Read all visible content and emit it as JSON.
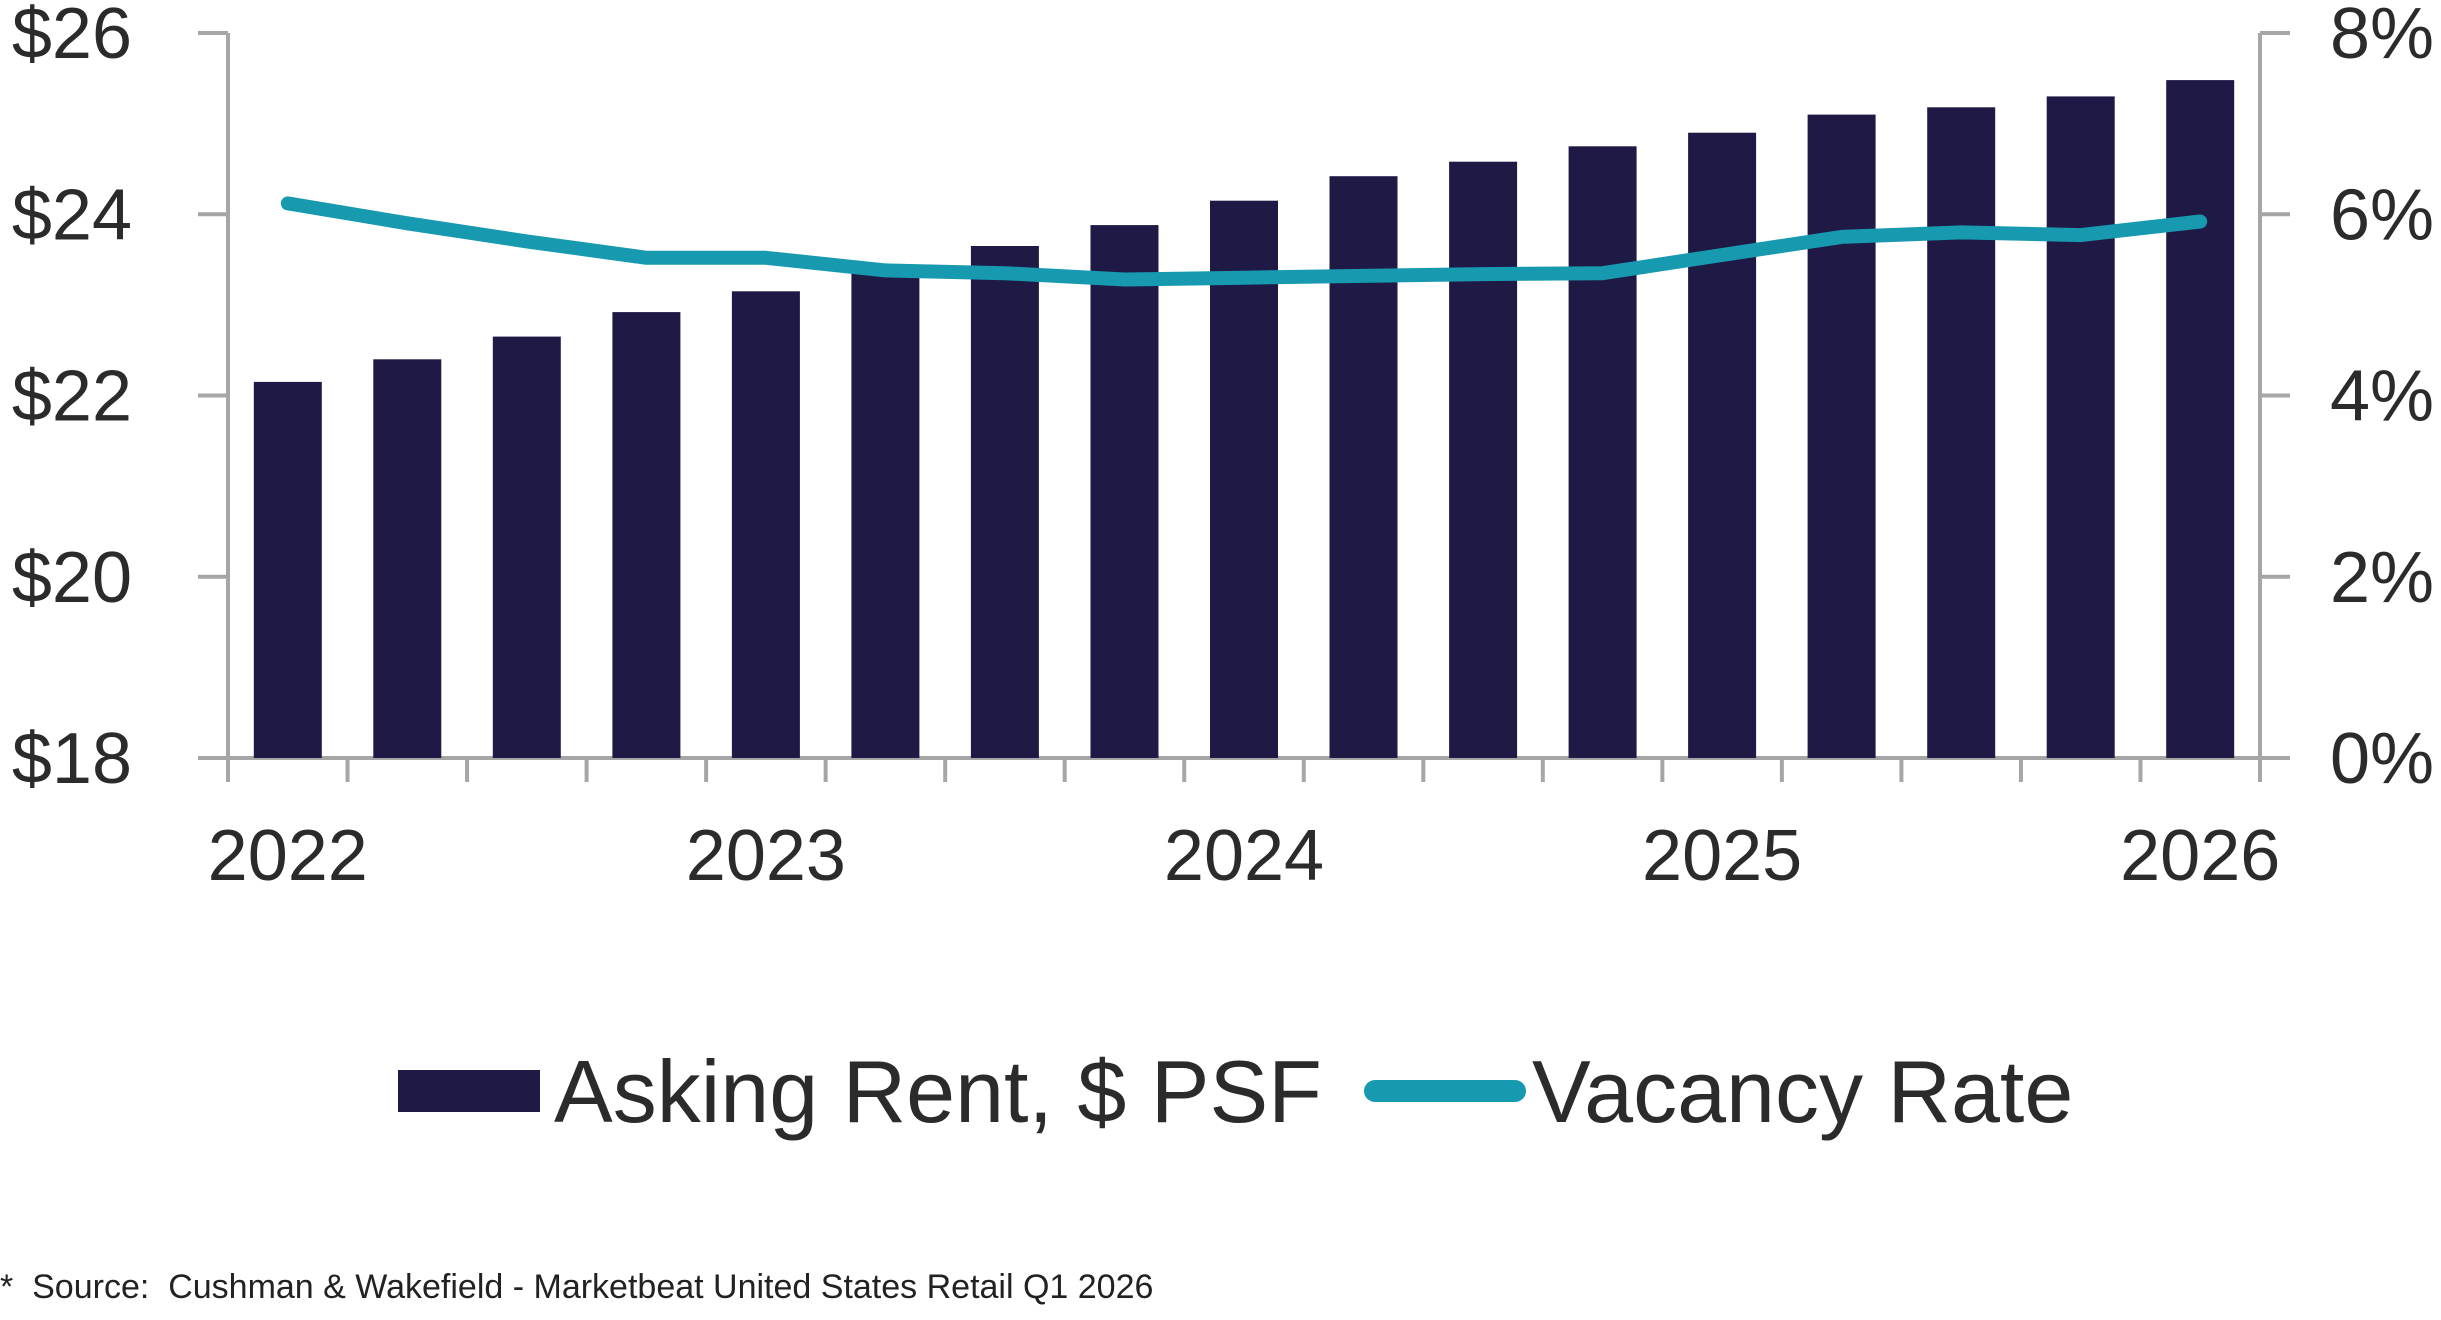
{
  "chart_data": {
    "type": "bar",
    "title": "",
    "xlabel": "",
    "ylabel": "",
    "x_tick_labels": [
      "2022",
      "2023",
      "2024",
      "2025",
      "2026"
    ],
    "categories": [
      "2022 Q1",
      "2022 Q2",
      "2022 Q3",
      "2022 Q4",
      "2023 Q1",
      "2023 Q2",
      "2023 Q3",
      "2023 Q4",
      "2024 Q1",
      "2024 Q2",
      "2024 Q3",
      "2024 Q4",
      "2025 Q1",
      "2025 Q2",
      "2025 Q3",
      "2025 Q4",
      "2026 Q1"
    ],
    "series": [
      {
        "name": "Asking Rent, $ PSF",
        "type": "bar",
        "axis": "left",
        "color": "#1e1a45",
        "values": [
          22.15,
          22.4,
          22.65,
          22.92,
          23.15,
          23.4,
          23.65,
          23.88,
          24.15,
          24.42,
          24.58,
          24.75,
          24.9,
          25.1,
          25.18,
          25.3,
          25.48
        ]
      },
      {
        "name": "Vacancy Rate",
        "type": "line",
        "axis": "right",
        "color": "#1799b0",
        "values": [
          6.12,
          5.9,
          5.7,
          5.52,
          5.52,
          5.38,
          5.35,
          5.28,
          5.3,
          5.32,
          5.34,
          5.35,
          5.55,
          5.75,
          5.8,
          5.77,
          5.92
        ]
      }
    ],
    "y_left": {
      "ylim": [
        18,
        26
      ],
      "ticks": [
        18,
        20,
        22,
        24,
        26
      ],
      "tick_labels": [
        "$18",
        "$20",
        "$22",
        "$24",
        "$26"
      ]
    },
    "y_right": {
      "ylim": [
        0,
        8
      ],
      "ticks": [
        0,
        2,
        4,
        6,
        8
      ],
      "tick_labels": [
        "0%",
        "2%",
        "4%",
        "6%",
        "8%"
      ]
    },
    "legend": {
      "placement": "bottom",
      "entries": [
        "Asking Rent, $ PSF",
        "Vacancy Rate"
      ]
    },
    "grid": false,
    "axis_color": "#a6a6a6"
  },
  "source_note": "*  Source:  Cushman & Wakefield - Marketbeat United States Retail Q1 2026"
}
